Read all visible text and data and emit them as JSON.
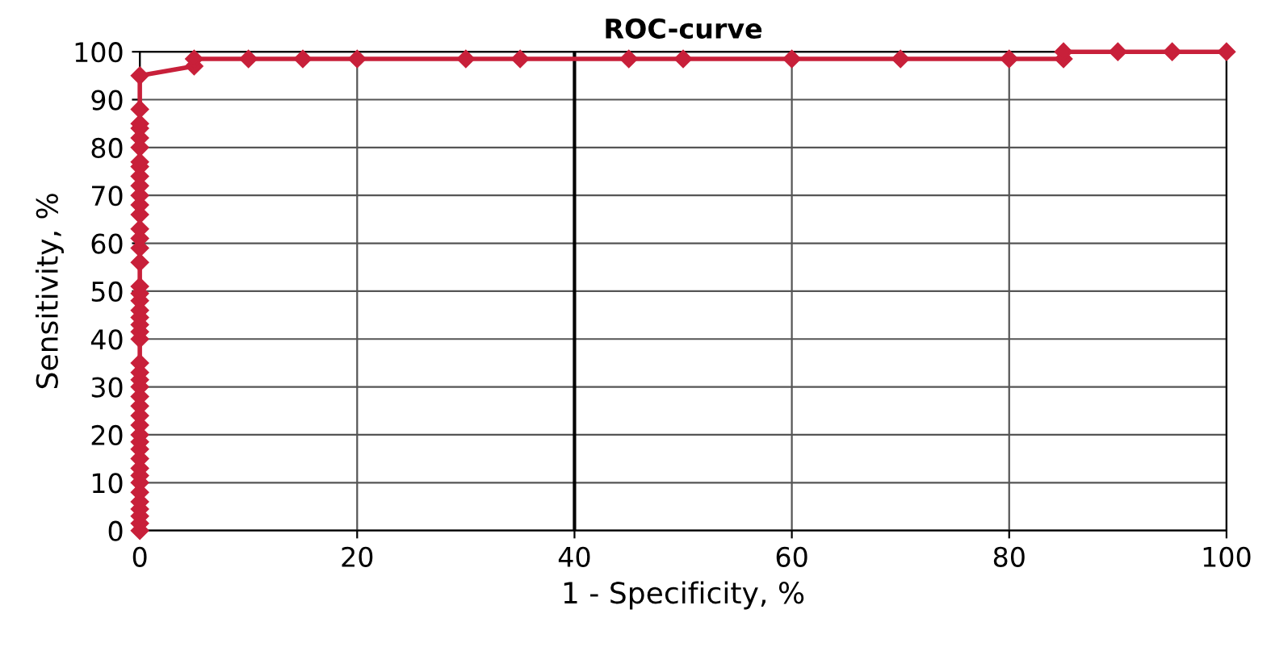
{
  "chart_data": {
    "type": "line",
    "title": "ROC-curve",
    "xlabel": "1 - Specificity, %",
    "ylabel": "Sensitivity, %",
    "xlim": [
      0,
      100
    ],
    "xticks": [
      0,
      20,
      40,
      60,
      80,
      100
    ],
    "ylim": [
      0,
      100
    ],
    "yticks": [
      0,
      10,
      20,
      30,
      40,
      50,
      60,
      70,
      80,
      90,
      100
    ],
    "grid": true,
    "marker": "diamond",
    "line_style": "solid",
    "ref_lines": [
      {
        "axis": "x",
        "value": 40,
        "color": "#000000"
      }
    ],
    "series": [
      {
        "color": "#c8203a",
        "x": [
          0,
          0,
          0,
          0,
          0,
          0,
          0,
          0,
          0,
          0,
          0,
          0,
          0,
          0,
          0,
          0,
          0,
          0,
          0,
          0,
          0,
          0,
          0,
          0,
          0,
          0,
          0,
          0,
          0,
          0,
          0,
          0,
          0,
          0,
          0,
          0,
          0,
          0,
          0,
          0,
          0,
          0,
          0,
          0,
          0,
          0,
          5,
          5,
          10,
          15,
          20,
          30,
          35,
          45,
          50,
          60,
          70,
          80,
          85,
          85,
          90,
          95,
          100
        ],
        "values": [
          0,
          1.5,
          3,
          4.5,
          6,
          8,
          10,
          11.5,
          13,
          15,
          17,
          18.5,
          20,
          22,
          24,
          26,
          28,
          30,
          31.5,
          33,
          35,
          40,
          41.5,
          43,
          44.5,
          46,
          48,
          49.5,
          51,
          56,
          59,
          61,
          63,
          66,
          68,
          70,
          72,
          74,
          76,
          77,
          80,
          82,
          84,
          85,
          88,
          95,
          97,
          98.5,
          98.5,
          98.5,
          98.5,
          98.5,
          98.5,
          98.5,
          98.5,
          98.5,
          98.5,
          98.5,
          98.5,
          100,
          100,
          100,
          100
        ]
      }
    ]
  }
}
